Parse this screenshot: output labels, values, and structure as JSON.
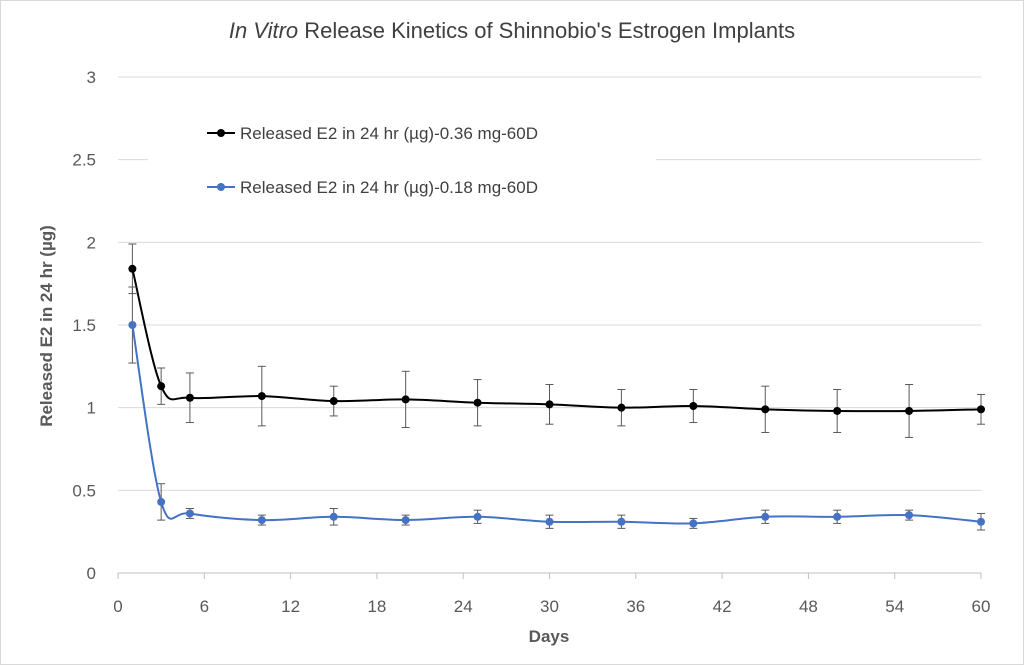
{
  "chart_data": {
    "type": "line",
    "title_italic": "In Vitro",
    "title_rest": " Release Kinetics of Shinnobio's Estrogen Implants",
    "xlabel": "Days",
    "ylabel": "Released E2 in 24 hr (µg)",
    "xlim": [
      0,
      60
    ],
    "ylim": [
      0,
      3
    ],
    "xticks": [
      0,
      6,
      12,
      18,
      24,
      30,
      36,
      42,
      48,
      54,
      60
    ],
    "yticks": [
      0,
      0.5,
      1,
      1.5,
      2,
      2.5,
      3
    ],
    "grid": "horizontal",
    "legend_position": "top-left",
    "series": [
      {
        "name": "Released E2 in 24 hr (µg)-0.36 mg-60D",
        "color": "#000000",
        "x": [
          1,
          3,
          5,
          10,
          15,
          20,
          25,
          30,
          35,
          40,
          45,
          50,
          55,
          60
        ],
        "y": [
          1.84,
          1.13,
          1.06,
          1.07,
          1.04,
          1.05,
          1.03,
          1.02,
          1.0,
          1.01,
          0.99,
          0.98,
          0.98,
          0.99
        ],
        "err": [
          0.15,
          0.11,
          0.15,
          0.18,
          0.09,
          0.17,
          0.14,
          0.12,
          0.11,
          0.1,
          0.14,
          0.13,
          0.16,
          0.09
        ]
      },
      {
        "name": "Released E2 in 24 hr (µg)-0.18 mg-60D",
        "color": "#4472C4",
        "x": [
          1,
          3,
          5,
          10,
          15,
          20,
          25,
          30,
          35,
          40,
          45,
          50,
          55,
          60
        ],
        "y": [
          1.5,
          0.43,
          0.36,
          0.32,
          0.34,
          0.32,
          0.34,
          0.31,
          0.31,
          0.3,
          0.34,
          0.34,
          0.35,
          0.31
        ],
        "err": [
          0.23,
          0.11,
          0.03,
          0.03,
          0.05,
          0.03,
          0.04,
          0.04,
          0.04,
          0.03,
          0.04,
          0.04,
          0.03,
          0.05
        ]
      }
    ]
  }
}
